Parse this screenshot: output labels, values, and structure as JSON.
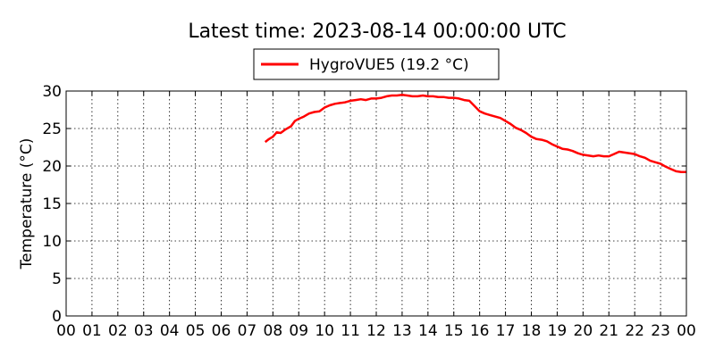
{
  "chart_data": {
    "type": "line",
    "title": "Latest time: 2023-08-14 00:00:00 UTC",
    "xlabel": "",
    "ylabel": "Temperature (°C)",
    "xlim": [
      0,
      24
    ],
    "ylim": [
      0,
      30
    ],
    "x_tick_labels": [
      "00",
      "01",
      "02",
      "03",
      "04",
      "05",
      "06",
      "07",
      "08",
      "09",
      "10",
      "11",
      "12",
      "13",
      "14",
      "15",
      "16",
      "17",
      "18",
      "19",
      "20",
      "21",
      "22",
      "23",
      "00"
    ],
    "y_ticks": [
      0,
      5,
      10,
      15,
      20,
      25,
      30
    ],
    "grid": true,
    "legend_position": "top-center",
    "series": [
      {
        "name": "HygroVUE5 (19.2 °C)",
        "color": "#ff0000",
        "x": [
          7.7,
          7.85,
          8.0,
          8.15,
          8.3,
          8.5,
          8.7,
          8.85,
          9.0,
          9.2,
          9.4,
          9.6,
          9.8,
          10.0,
          10.2,
          10.4,
          10.6,
          10.8,
          11.0,
          11.2,
          11.4,
          11.6,
          11.8,
          12.0,
          12.2,
          12.4,
          12.6,
          12.8,
          13.0,
          13.2,
          13.4,
          13.6,
          13.8,
          14.0,
          14.2,
          14.4,
          14.6,
          14.8,
          15.0,
          15.2,
          15.4,
          15.6,
          15.8,
          16.0,
          16.2,
          16.4,
          16.6,
          16.8,
          17.0,
          17.2,
          17.4,
          17.6,
          17.8,
          18.0,
          18.2,
          18.4,
          18.6,
          18.8,
          19.0,
          19.2,
          19.4,
          19.6,
          19.8,
          20.0,
          20.2,
          20.4,
          20.6,
          20.8,
          21.0,
          21.2,
          21.4,
          21.6,
          21.8,
          22.0,
          22.2,
          22.4,
          22.6,
          22.8,
          23.0,
          23.2,
          23.4,
          23.6,
          23.8,
          24.0
        ],
        "y": [
          23.2,
          23.6,
          23.9,
          24.5,
          24.4,
          24.9,
          25.3,
          26.0,
          26.3,
          26.6,
          27.0,
          27.2,
          27.3,
          27.8,
          28.1,
          28.3,
          28.4,
          28.5,
          28.7,
          28.8,
          28.9,
          28.8,
          29.0,
          29.0,
          29.1,
          29.3,
          29.4,
          29.4,
          29.5,
          29.4,
          29.3,
          29.3,
          29.4,
          29.3,
          29.3,
          29.2,
          29.2,
          29.1,
          29.1,
          29.0,
          28.8,
          28.7,
          28.0,
          27.3,
          27.0,
          26.8,
          26.6,
          26.4,
          26.0,
          25.6,
          25.1,
          24.8,
          24.4,
          23.9,
          23.6,
          23.5,
          23.3,
          22.9,
          22.6,
          22.3,
          22.2,
          22.0,
          21.7,
          21.5,
          21.4,
          21.3,
          21.4,
          21.3,
          21.3,
          21.6,
          21.9,
          21.8,
          21.7,
          21.6,
          21.3,
          21.1,
          20.7,
          20.5,
          20.3,
          19.9,
          19.6,
          19.3,
          19.2,
          19.2
        ]
      }
    ]
  }
}
